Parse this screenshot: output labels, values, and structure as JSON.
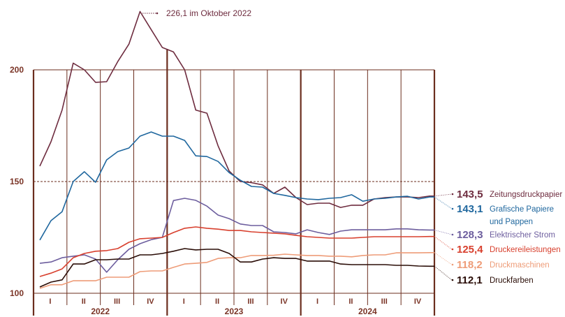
{
  "chart_data": {
    "type": "line",
    "title": "",
    "xlabel": "",
    "ylabel": "",
    "ylim": [
      100,
      200
    ],
    "y_ticks": [
      "100",
      "150",
      "200"
    ],
    "reference_line": {
      "value": 150,
      "style": "dashed"
    },
    "years": [
      "2022",
      "2023",
      "2024"
    ],
    "quarters": [
      "I",
      "II",
      "III",
      "IV"
    ],
    "x_frequency": "monthly",
    "x_start": "2022-01",
    "x_end": "2024-12",
    "legend_placement": "right",
    "annotation": {
      "text": "226,1 im Oktober 2022",
      "series": "Zeitungsdruckpapier",
      "x": "2022-10",
      "y": 226.1
    },
    "series": [
      {
        "name": "Zeitungsdruckpapier",
        "end_label": "143,5",
        "color": "#6e2c3f",
        "values": [
          156.9,
          167.8,
          182,
          203,
          200,
          194.4,
          194.7,
          203.7,
          211.5,
          226.1,
          218,
          210,
          208,
          200,
          182,
          180.6,
          166,
          154.7,
          150,
          149.5,
          148.5,
          144.7,
          147.5,
          142.8,
          139.7,
          140.3,
          140.3,
          138.4,
          139.4,
          139.4,
          142.2,
          142.8,
          143.1,
          143.1,
          142.8,
          143.5
        ]
      },
      {
        "name": "Grafische Papiere und Pappen",
        "name_lines": [
          "Grafische Papiere",
          "und Pappen"
        ],
        "end_label": "143,1",
        "color": "#1f679e",
        "values": [
          123.8,
          132.5,
          136.5,
          150,
          154.4,
          149.7,
          159.7,
          163.4,
          165,
          170.3,
          172.2,
          170.3,
          170.3,
          168.4,
          161.5,
          161.2,
          159,
          154,
          150.6,
          147.8,
          147.5,
          144.7,
          143.8,
          142.8,
          142.2,
          141.9,
          142.5,
          142.8,
          144.1,
          141.2,
          142.2,
          142.5,
          143.1,
          143.4,
          142.2,
          143.1
        ]
      },
      {
        "name": "Elektrischer Strom",
        "end_label": "128,3",
        "color": "#6d5e9e",
        "values": [
          113.4,
          114,
          115.9,
          116.6,
          117.2,
          115.3,
          109.4,
          115,
          119.7,
          122.2,
          124,
          125,
          141.5,
          142.5,
          141.6,
          139,
          135,
          133.4,
          131,
          130.3,
          130.3,
          127.5,
          127.2,
          126.6,
          128.4,
          127.2,
          126.3,
          127.8,
          128.4,
          128.4,
          128.4,
          128.4,
          128.8,
          128.8,
          128.4,
          128.3
        ]
      },
      {
        "name": "Druckereileistungen",
        "end_label": "125,4",
        "color": "#d8402e",
        "values": [
          107.5,
          109,
          110.9,
          115.9,
          117.8,
          118.8,
          119.1,
          120,
          122.8,
          124.4,
          124.7,
          125,
          127.2,
          129.1,
          129.7,
          129.1,
          128.7,
          128.1,
          128.1,
          127.5,
          127.2,
          126.9,
          126.6,
          125.9,
          125.3,
          125,
          124.7,
          124.7,
          124.7,
          125,
          125.3,
          125.3,
          125.3,
          125.3,
          125.3,
          125.4
        ]
      },
      {
        "name": "Druckmaschinen",
        "end_label": "118,2",
        "color": "#ee9c78",
        "values": [
          102.2,
          103.8,
          103.8,
          105.6,
          105.6,
          105.6,
          107.2,
          107.2,
          107.2,
          109.7,
          110,
          110,
          111.6,
          113.1,
          113.4,
          113.8,
          115.6,
          115.9,
          115.9,
          116.9,
          116.9,
          117,
          117.5,
          117.2,
          116.9,
          116.9,
          116.6,
          116.6,
          116.3,
          116.9,
          117.2,
          117.2,
          118.1,
          118.1,
          118.1,
          118.2
        ]
      },
      {
        "name": "Druckfarben",
        "end_label": "112,1",
        "color": "#2a0d07",
        "values": [
          102.8,
          105,
          106,
          113.1,
          113.1,
          115,
          115,
          115.3,
          115.3,
          117.2,
          117.2,
          117.8,
          118.8,
          120,
          119.4,
          119.7,
          119.7,
          117.8,
          114,
          114,
          115.3,
          115.9,
          115.6,
          115.6,
          114.4,
          114.4,
          114.4,
          113.1,
          112.8,
          112.8,
          112.8,
          112.8,
          112.5,
          112.5,
          112.2,
          112.1
        ]
      }
    ]
  },
  "colors": {
    "frame": "#6b2e1e",
    "label": "#7a3426"
  }
}
